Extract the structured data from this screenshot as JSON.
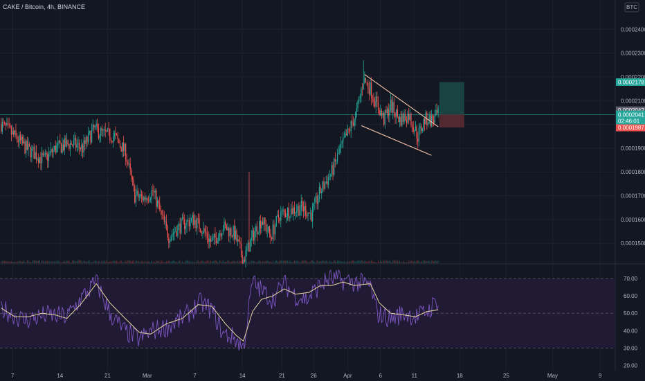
{
  "header": {
    "title": "CAKE / Bitcoin, 4h, BINANCE",
    "currency_badge": "BTC"
  },
  "colors": {
    "background": "#131722",
    "grid": "#1e222d",
    "up": "#26a69a",
    "down": "#ef5350",
    "rsi": "#7e57c2",
    "rsi_ma": "#e8d9a0",
    "rsi_band": "#211a35",
    "trendline": "#e6b8a0",
    "last_price": "#26a69a",
    "target_zone": "#1b4a48",
    "stop_zone": "#5a2b33"
  },
  "chart_data": [
    {
      "type": "candlestick",
      "title": "CAKE / Bitcoin, 4h, BINANCE",
      "xlabel": "",
      "ylabel": "",
      "x_tick_labels": [
        "7",
        "14",
        "21",
        "Mar",
        "7",
        "14",
        "21",
        "26",
        "Apr",
        "6",
        "11",
        "18",
        "25",
        "May",
        "9",
        "16"
      ],
      "x_tick_index": [
        10,
        52,
        94,
        129,
        171,
        213,
        248,
        276,
        306,
        335,
        365,
        405,
        446,
        487,
        529,
        571
      ],
      "y_tick_labels": [
        "0.0001500",
        "0.0001600",
        "0.0001700",
        "0.0001800",
        "0.0001900",
        "0.0002000",
        "0.0002100",
        "0.0002200",
        "0.0002300",
        "0.0002400"
      ],
      "ylim": [
        0.0001416,
        0.0002465
      ],
      "grid": true,
      "volume": true,
      "last_price": {
        "value": 0.0002041,
        "label": "0.0002041",
        "countdown": "02:46:01"
      },
      "price_labels": [
        {
          "label": "0.0002178",
          "value": 0.0002178,
          "color": "#26a69a"
        },
        {
          "label": "0.0002042",
          "value": 0.0002042,
          "color": "#5d606b"
        },
        {
          "label": "0.0001987",
          "value": 0.0001987,
          "color": "#ef5350"
        }
      ],
      "trendlines": [
        {
          "x": [
            321,
            386
          ],
          "y": [
            0.000221,
            0.000199
          ]
        },
        {
          "x": [
            318,
            380
          ],
          "y": [
            0.0001995,
            0.000187
          ]
        }
      ],
      "position": {
        "x_start": 387,
        "x_end": 409,
        "entry": 0.0002042,
        "target": 0.0002178,
        "stop": 0.0001987
      },
      "anchors": [
        [
          0,
          0.0002
        ],
        [
          12,
          0.000195
        ],
        [
          22,
          0.00019
        ],
        [
          38,
          0.000185
        ],
        [
          48,
          0.00019
        ],
        [
          62,
          0.000192
        ],
        [
          72,
          0.00019
        ],
        [
          82,
          0.000198
        ],
        [
          90,
          0.000196
        ],
        [
          100,
          0.000195
        ],
        [
          110,
          0.000188
        ],
        [
          118,
          0.00017
        ],
        [
          126,
          0.000169
        ],
        [
          134,
          0.000172
        ],
        [
          142,
          0.000161
        ],
        [
          148,
          0.000153
        ],
        [
          160,
          0.000158
        ],
        [
          170,
          0.00016
        ],
        [
          178,
          0.000156
        ],
        [
          186,
          0.00015
        ],
        [
          196,
          0.000157
        ],
        [
          206,
          0.000154
        ],
        [
          214,
          0.000143
        ],
        [
          224,
          0.000155
        ],
        [
          230,
          0.00016
        ],
        [
          238,
          0.000153
        ],
        [
          246,
          0.000162
        ],
        [
          256,
          0.000164
        ],
        [
          266,
          0.000165
        ],
        [
          274,
          0.000162
        ],
        [
          282,
          0.000172
        ],
        [
          292,
          0.00018
        ],
        [
          300,
          0.00019
        ],
        [
          306,
          0.000196
        ],
        [
          314,
          0.000205
        ],
        [
          320,
          0.000219
        ],
        [
          326,
          0.000215
        ],
        [
          332,
          0.000208
        ],
        [
          338,
          0.000202
        ],
        [
          344,
          0.000208
        ],
        [
          352,
          0.000202
        ],
        [
          360,
          0.000204
        ],
        [
          368,
          0.000195
        ],
        [
          374,
          0.000202
        ],
        [
          382,
          0.000202
        ],
        [
          386,
          0.0002041
        ]
      ],
      "bar_count": 387
    },
    {
      "type": "line",
      "title": "",
      "x_index": "shared",
      "ylim": [
        19,
        74
      ],
      "y_tick_labels": [
        "20.00",
        "30.00",
        "40.00",
        "50.00",
        "60.00",
        "70.00"
      ],
      "band": [
        30,
        70
      ],
      "dashed_levels": [
        30,
        50,
        70
      ],
      "series": [
        {
          "role": "rsi",
          "color": "#7e57c2"
        },
        {
          "role": "rsi_ma",
          "color": "#e8d9a0"
        }
      ],
      "rsi_anchors": [
        [
          0,
          53
        ],
        [
          20,
          46
        ],
        [
          40,
          49
        ],
        [
          58,
          48
        ],
        [
          70,
          58
        ],
        [
          84,
          68
        ],
        [
          96,
          50
        ],
        [
          108,
          40
        ],
        [
          122,
          35
        ],
        [
          134,
          40
        ],
        [
          146,
          42
        ],
        [
          160,
          47
        ],
        [
          176,
          56
        ],
        [
          186,
          52
        ],
        [
          196,
          38
        ],
        [
          206,
          36
        ],
        [
          214,
          30
        ],
        [
          222,
          68
        ],
        [
          230,
          63
        ],
        [
          240,
          58
        ],
        [
          250,
          67
        ],
        [
          260,
          60
        ],
        [
          270,
          58
        ],
        [
          280,
          65
        ],
        [
          290,
          70
        ],
        [
          300,
          69
        ],
        [
          312,
          68
        ],
        [
          326,
          66
        ],
        [
          332,
          50
        ],
        [
          344,
          47
        ],
        [
          356,
          50
        ],
        [
          368,
          48
        ],
        [
          378,
          52
        ],
        [
          386,
          58
        ]
      ],
      "ma_anchors": [
        [
          0,
          53
        ],
        [
          12,
          48
        ],
        [
          24,
          48
        ],
        [
          36,
          50
        ],
        [
          48,
          49
        ],
        [
          58,
          47
        ],
        [
          70,
          55
        ],
        [
          84,
          67
        ],
        [
          96,
          56
        ],
        [
          108,
          48
        ],
        [
          122,
          39
        ],
        [
          132,
          38
        ],
        [
          146,
          44
        ],
        [
          160,
          47
        ],
        [
          174,
          55
        ],
        [
          186,
          54
        ],
        [
          198,
          44
        ],
        [
          208,
          37
        ],
        [
          214,
          34
        ],
        [
          222,
          51
        ],
        [
          230,
          58
        ],
        [
          240,
          60
        ],
        [
          250,
          64
        ],
        [
          260,
          61
        ],
        [
          272,
          62
        ],
        [
          282,
          66
        ],
        [
          292,
          66
        ],
        [
          302,
          68
        ],
        [
          312,
          66
        ],
        [
          326,
          67
        ],
        [
          334,
          56
        ],
        [
          344,
          50
        ],
        [
          356,
          49
        ],
        [
          366,
          48
        ],
        [
          376,
          51
        ],
        [
          386,
          52
        ]
      ]
    }
  ]
}
